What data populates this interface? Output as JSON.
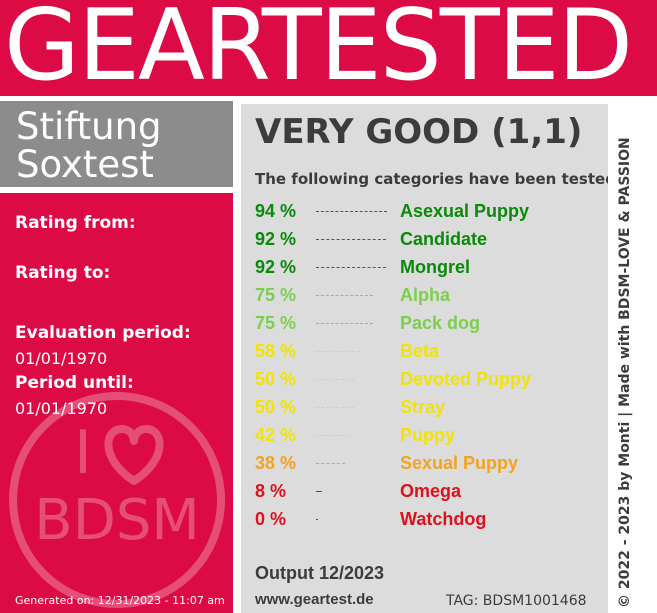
{
  "header": {
    "title": "GEARTESTED"
  },
  "brand": {
    "line1": "Stiftung",
    "line2": "Soxtest"
  },
  "left": {
    "rating_from_label": "Rating from:",
    "rating_to_label": "Rating to:",
    "evaluation_period_label": "Evaluation period:",
    "evaluation_period_value": "01/01/1970",
    "period_until_label": "Period until:",
    "period_until_value": "01/01/1970",
    "generated": "Generated on: 12/31/2023 - 11:07 am",
    "logo": {
      "icon": "heart-icon",
      "top": "I",
      "bottom": "BDSM"
    }
  },
  "result": {
    "grade": "VERY GOOD (1,1)",
    "intro": "The following categories have been tested:",
    "categories": [
      {
        "percent": "94 %",
        "name": "Asexual Puppy",
        "value": 94,
        "color": "#0a8a0a"
      },
      {
        "percent": "92 %",
        "name": "Candidate",
        "value": 92,
        "color": "#0a8a0a"
      },
      {
        "percent": "92 %",
        "name": "Mongrel",
        "value": 92,
        "color": "#0a8a0a"
      },
      {
        "percent": "75 %",
        "name": "Alpha",
        "value": 75,
        "color": "#7ccf4c"
      },
      {
        "percent": "75 %",
        "name": "Pack dog",
        "value": 75,
        "color": "#7ccf4c"
      },
      {
        "percent": "58 %",
        "name": "Beta",
        "value": 58,
        "color": "#f2e400"
      },
      {
        "percent": "50 %",
        "name": "Devoted Puppy",
        "value": 50,
        "color": "#f2e400"
      },
      {
        "percent": "50 %",
        "name": "Stray",
        "value": 50,
        "color": "#f2e400"
      },
      {
        "percent": "42 %",
        "name": "Puppy",
        "value": 42,
        "color": "#f2e400"
      },
      {
        "percent": "38 %",
        "name": "Sexual Puppy",
        "value": 38,
        "color": "#f5a21e"
      },
      {
        "percent": "8 %",
        "name": "Omega",
        "value": 8,
        "color": "#e0101a"
      },
      {
        "percent": "0 %",
        "name": "Watchdog",
        "value": 0,
        "color": "#e0101a"
      }
    ],
    "output": "Output 12/2023",
    "website": "www.geartest.de",
    "tag": "TAG: BDSM1001468"
  },
  "credit": "© 2022 - 2023 by Monti | Made with BDSM-LOVE & PASSION",
  "colors": {
    "accent": "#dc0a45",
    "brand_gray": "#8c8c8c",
    "panel_gray": "#dcdcdc",
    "text": "#3c3c3c"
  }
}
